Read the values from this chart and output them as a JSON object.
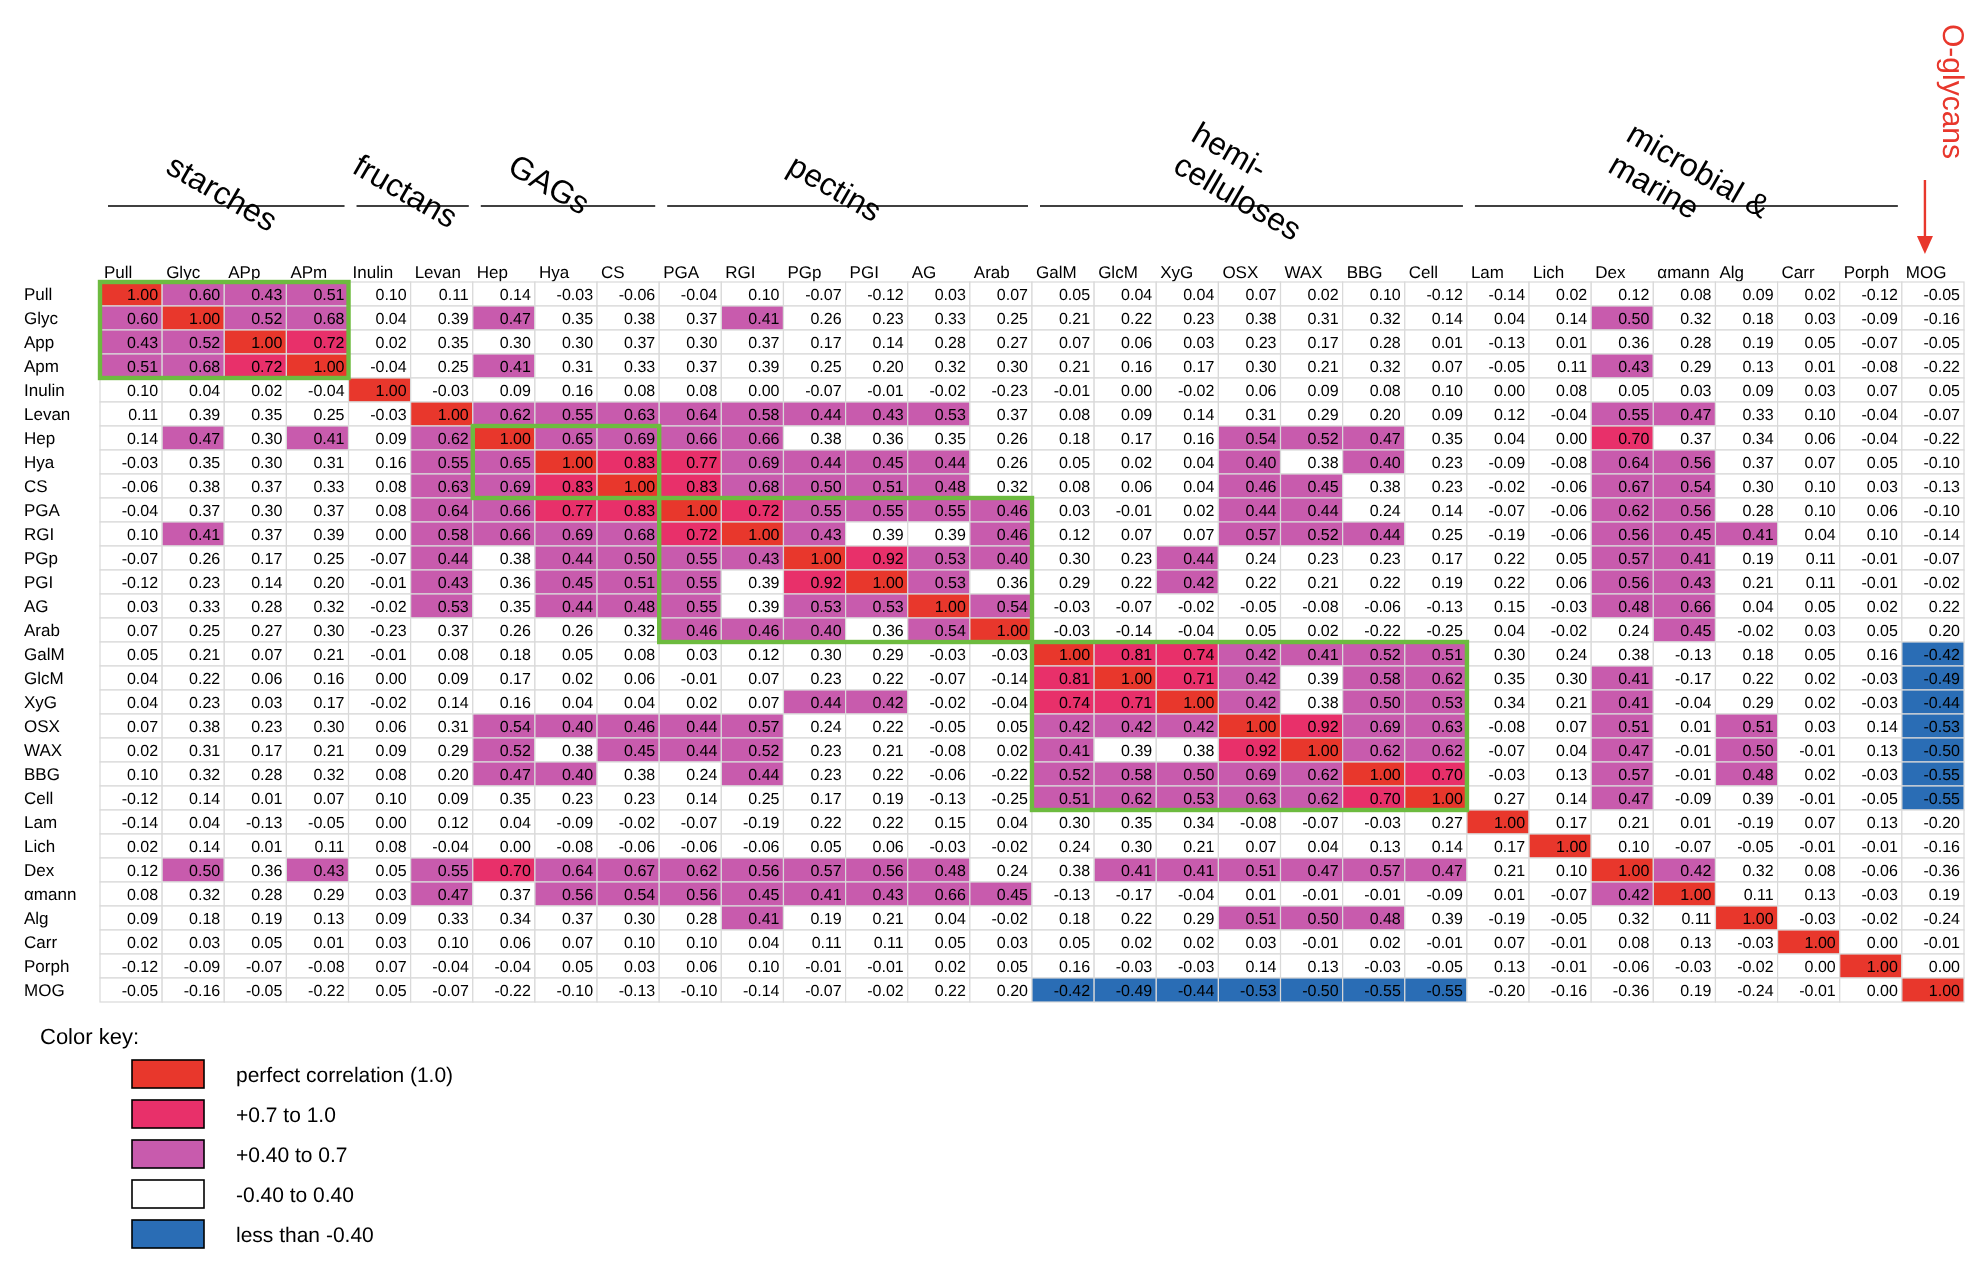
{
  "chart_data": {
    "type": "heatmap",
    "categories": [
      "Pull",
      "Glyc",
      "APp",
      "APm",
      "Inulin",
      "Levan",
      "Hep",
      "Hya",
      "CS",
      "PGA",
      "RGI",
      "PGp",
      "PGI",
      "AG",
      "Arab",
      "GalM",
      "GlcM",
      "XyG",
      "OSX",
      "WAX",
      "BBG",
      "Cell",
      "Lam",
      "Lich",
      "Dex",
      "αmann",
      "Alg",
      "Carr",
      "Porph",
      "MOG"
    ],
    "y_categories": [
      "Pull",
      "Glyc",
      "App",
      "Apm",
      "Inulin",
      "Levan",
      "Hep",
      "Hya",
      "CS",
      "PGA",
      "RGI",
      "PGp",
      "PGI",
      "AG",
      "Arab",
      "GalM",
      "GlcM",
      "XyG",
      "OSX",
      "WAX",
      "BBG",
      "Cell",
      "Lam",
      "Lich",
      "Dex",
      "αmann",
      "Alg",
      "Carr",
      "Porph",
      "MOG"
    ],
    "cells": [
      [
        1.0,
        0.6,
        0.43,
        0.51,
        0.1,
        0.11,
        0.14,
        -0.03,
        -0.06,
        -0.04,
        0.1,
        -0.07,
        -0.12,
        0.03,
        0.07,
        0.05,
        0.04,
        0.04,
        0.07,
        0.02,
        0.1,
        -0.12,
        -0.14,
        0.02,
        0.12,
        0.08,
        0.09,
        0.02,
        -0.12,
        -0.05
      ],
      [
        0.6,
        1.0,
        0.52,
        0.68,
        0.04,
        0.39,
        0.47,
        0.35,
        0.38,
        0.37,
        0.41,
        0.26,
        0.23,
        0.33,
        0.25,
        0.21,
        0.22,
        0.23,
        0.38,
        0.31,
        0.32,
        0.14,
        0.04,
        0.14,
        0.5,
        0.32,
        0.18,
        0.03,
        -0.09,
        -0.16
      ],
      [
        0.43,
        0.52,
        1.0,
        0.72,
        0.02,
        0.35,
        0.3,
        0.3,
        0.37,
        0.3,
        0.37,
        0.17,
        0.14,
        0.28,
        0.27,
        0.07,
        0.06,
        0.03,
        0.23,
        0.17,
        0.28,
        0.01,
        -0.13,
        0.01,
        0.36,
        0.28,
        0.19,
        0.05,
        -0.07,
        -0.05
      ],
      [
        0.51,
        0.68,
        0.72,
        1.0,
        -0.04,
        0.25,
        0.41,
        0.31,
        0.33,
        0.37,
        0.39,
        0.25,
        0.2,
        0.32,
        0.3,
        0.21,
        0.16,
        0.17,
        0.3,
        0.21,
        0.32,
        0.07,
        -0.05,
        0.11,
        0.43,
        0.29,
        0.13,
        0.01,
        -0.08,
        -0.22
      ],
      [
        0.1,
        0.04,
        0.02,
        -0.04,
        1.0,
        -0.03,
        0.09,
        0.16,
        0.08,
        0.08,
        0.0,
        -0.07,
        -0.01,
        -0.02,
        -0.23,
        -0.01,
        0.0,
        -0.02,
        0.06,
        0.09,
        0.08,
        0.1,
        0.0,
        0.08,
        0.05,
        0.03,
        0.09,
        0.03,
        0.07,
        0.05
      ],
      [
        0.11,
        0.39,
        0.35,
        0.25,
        -0.03,
        1.0,
        0.62,
        0.55,
        0.63,
        0.64,
        0.58,
        0.44,
        0.43,
        0.53,
        0.37,
        0.08,
        0.09,
        0.14,
        0.31,
        0.29,
        0.2,
        0.09,
        0.12,
        -0.04,
        0.55,
        0.47,
        0.33,
        0.1,
        -0.04,
        -0.07
      ],
      [
        0.14,
        0.47,
        0.3,
        0.41,
        0.09,
        0.62,
        1.0,
        0.65,
        0.69,
        0.66,
        0.66,
        0.38,
        0.36,
        0.35,
        0.26,
        0.18,
        0.17,
        0.16,
        0.54,
        0.52,
        0.47,
        0.35,
        0.04,
        0.0,
        0.7,
        0.37,
        0.34,
        0.06,
        -0.04,
        -0.22
      ],
      [
        -0.03,
        0.35,
        0.3,
        0.31,
        0.16,
        0.55,
        0.65,
        1.0,
        0.83,
        0.77,
        0.69,
        0.44,
        0.45,
        0.44,
        0.26,
        0.05,
        0.02,
        0.04,
        0.4,
        0.38,
        0.4,
        0.23,
        -0.09,
        -0.08,
        0.64,
        0.56,
        0.37,
        0.07,
        0.05,
        -0.1
      ],
      [
        -0.06,
        0.38,
        0.37,
        0.33,
        0.08,
        0.63,
        0.69,
        0.83,
        1.0,
        0.83,
        0.68,
        0.5,
        0.51,
        0.48,
        0.32,
        0.08,
        0.06,
        0.04,
        0.46,
        0.45,
        0.38,
        0.23,
        -0.02,
        -0.06,
        0.67,
        0.54,
        0.3,
        0.1,
        0.03,
        -0.13
      ],
      [
        -0.04,
        0.37,
        0.3,
        0.37,
        0.08,
        0.64,
        0.66,
        0.77,
        0.83,
        1.0,
        0.72,
        0.55,
        0.55,
        0.55,
        0.46,
        0.03,
        -0.01,
        0.02,
        0.44,
        0.44,
        0.24,
        0.14,
        -0.07,
        -0.06,
        0.62,
        0.56,
        0.28,
        0.1,
        0.06,
        -0.1
      ],
      [
        0.1,
        0.41,
        0.37,
        0.39,
        0.0,
        0.58,
        0.66,
        0.69,
        0.68,
        0.72,
        1.0,
        0.43,
        0.39,
        0.39,
        0.46,
        0.12,
        0.07,
        0.07,
        0.57,
        0.52,
        0.44,
        0.25,
        -0.19,
        -0.06,
        0.56,
        0.45,
        0.41,
        0.04,
        0.1,
        -0.14
      ],
      [
        -0.07,
        0.26,
        0.17,
        0.25,
        -0.07,
        0.44,
        0.38,
        0.44,
        0.5,
        0.55,
        0.43,
        1.0,
        0.92,
        0.53,
        0.4,
        0.3,
        0.23,
        0.44,
        0.24,
        0.23,
        0.23,
        0.17,
        0.22,
        0.05,
        0.57,
        0.41,
        0.19,
        0.11,
        -0.01,
        -0.07
      ],
      [
        -0.12,
        0.23,
        0.14,
        0.2,
        -0.01,
        0.43,
        0.36,
        0.45,
        0.51,
        0.55,
        0.39,
        0.92,
        1.0,
        0.53,
        0.36,
        0.29,
        0.22,
        0.42,
        0.22,
        0.21,
        0.22,
        0.19,
        0.22,
        0.06,
        0.56,
        0.43,
        0.21,
        0.11,
        -0.01,
        -0.02
      ],
      [
        0.03,
        0.33,
        0.28,
        0.32,
        -0.02,
        0.53,
        0.35,
        0.44,
        0.48,
        0.55,
        0.39,
        0.53,
        0.53,
        1.0,
        0.54,
        -0.03,
        -0.07,
        -0.02,
        -0.05,
        -0.08,
        -0.06,
        -0.13,
        0.15,
        -0.03,
        0.48,
        0.66,
        0.04,
        0.05,
        0.02,
        0.22
      ],
      [
        0.07,
        0.25,
        0.27,
        0.3,
        -0.23,
        0.37,
        0.26,
        0.26,
        0.32,
        0.46,
        0.46,
        0.4,
        0.36,
        0.54,
        1.0,
        -0.03,
        -0.14,
        -0.04,
        0.05,
        0.02,
        -0.22,
        -0.25,
        0.04,
        -0.02,
        0.24,
        0.45,
        -0.02,
        0.03,
        0.05,
        0.2
      ],
      [
        0.05,
        0.21,
        0.07,
        0.21,
        -0.01,
        0.08,
        0.18,
        0.05,
        0.08,
        0.03,
        0.12,
        0.3,
        0.29,
        -0.03,
        -0.03,
        1.0,
        0.81,
        0.74,
        0.42,
        0.41,
        0.52,
        0.51,
        0.3,
        0.24,
        0.38,
        -0.13,
        0.18,
        0.05,
        0.16,
        -0.42
      ],
      [
        0.04,
        0.22,
        0.06,
        0.16,
        0.0,
        0.09,
        0.17,
        0.02,
        0.06,
        -0.01,
        0.07,
        0.23,
        0.22,
        -0.07,
        -0.14,
        0.81,
        1.0,
        0.71,
        0.42,
        0.39,
        0.58,
        0.62,
        0.35,
        0.3,
        0.41,
        -0.17,
        0.22,
        0.02,
        -0.03,
        -0.49
      ],
      [
        0.04,
        0.23,
        0.03,
        0.17,
        -0.02,
        0.14,
        0.16,
        0.04,
        0.04,
        0.02,
        0.07,
        0.44,
        0.42,
        -0.02,
        -0.04,
        0.74,
        0.71,
        1.0,
        0.42,
        0.38,
        0.5,
        0.53,
        0.34,
        0.21,
        0.41,
        -0.04,
        0.29,
        0.02,
        -0.03,
        -0.44
      ],
      [
        0.07,
        0.38,
        0.23,
        0.3,
        0.06,
        0.31,
        0.54,
        0.4,
        0.46,
        0.44,
        0.57,
        0.24,
        0.22,
        -0.05,
        0.05,
        0.42,
        0.42,
        0.42,
        1.0,
        0.92,
        0.69,
        0.63,
        -0.08,
        0.07,
        0.51,
        0.01,
        0.51,
        0.03,
        0.14,
        -0.53
      ],
      [
        0.02,
        0.31,
        0.17,
        0.21,
        0.09,
        0.29,
        0.52,
        0.38,
        0.45,
        0.44,
        0.52,
        0.23,
        0.21,
        -0.08,
        0.02,
        0.41,
        0.39,
        0.38,
        0.92,
        1.0,
        0.62,
        0.62,
        -0.07,
        0.04,
        0.47,
        -0.01,
        0.5,
        -0.01,
        0.13,
        -0.5
      ],
      [
        0.1,
        0.32,
        0.28,
        0.32,
        0.08,
        0.2,
        0.47,
        0.4,
        0.38,
        0.24,
        0.44,
        0.23,
        0.22,
        -0.06,
        -0.22,
        0.52,
        0.58,
        0.5,
        0.69,
        0.62,
        1.0,
        0.7,
        -0.03,
        0.13,
        0.57,
        -0.01,
        0.48,
        0.02,
        -0.03,
        -0.55
      ],
      [
        -0.12,
        0.14,
        0.01,
        0.07,
        0.1,
        0.09,
        0.35,
        0.23,
        0.23,
        0.14,
        0.25,
        0.17,
        0.19,
        -0.13,
        -0.25,
        0.51,
        0.62,
        0.53,
        0.63,
        0.62,
        0.7,
        1.0,
        0.27,
        0.14,
        0.47,
        -0.09,
        0.39,
        -0.01,
        -0.05,
        -0.55
      ],
      [
        -0.14,
        0.04,
        -0.13,
        -0.05,
        0.0,
        0.12,
        0.04,
        -0.09,
        -0.02,
        -0.07,
        -0.19,
        0.22,
        0.22,
        0.15,
        0.04,
        0.3,
        0.35,
        0.34,
        -0.08,
        -0.07,
        -0.03,
        0.27,
        1.0,
        0.17,
        0.21,
        0.01,
        -0.19,
        0.07,
        0.13,
        -0.2
      ],
      [
        0.02,
        0.14,
        0.01,
        0.11,
        0.08,
        -0.04,
        0.0,
        -0.08,
        -0.06,
        -0.06,
        -0.06,
        0.05,
        0.06,
        -0.03,
        -0.02,
        0.24,
        0.3,
        0.21,
        0.07,
        0.04,
        0.13,
        0.14,
        0.17,
        1.0,
        0.1,
        -0.07,
        -0.05,
        -0.01,
        -0.01,
        -0.16
      ],
      [
        0.12,
        0.5,
        0.36,
        0.43,
        0.05,
        0.55,
        0.7,
        0.64,
        0.67,
        0.62,
        0.56,
        0.57,
        0.56,
        0.48,
        0.24,
        0.38,
        0.41,
        0.41,
        0.51,
        0.47,
        0.57,
        0.47,
        0.21,
        0.1,
        1.0,
        0.42,
        0.32,
        0.08,
        -0.06,
        -0.36
      ],
      [
        0.08,
        0.32,
        0.28,
        0.29,
        0.03,
        0.47,
        0.37,
        0.56,
        0.54,
        0.56,
        0.45,
        0.41,
        0.43,
        0.66,
        0.45,
        -0.13,
        -0.17,
        -0.04,
        0.01,
        -0.01,
        -0.01,
        -0.09,
        0.01,
        -0.07,
        0.42,
        1.0,
        0.11,
        0.13,
        -0.03,
        0.19
      ],
      [
        0.09,
        0.18,
        0.19,
        0.13,
        0.09,
        0.33,
        0.34,
        0.37,
        0.3,
        0.28,
        0.41,
        0.19,
        0.21,
        0.04,
        -0.02,
        0.18,
        0.22,
        0.29,
        0.51,
        0.5,
        0.48,
        0.39,
        -0.19,
        -0.05,
        0.32,
        0.11,
        1.0,
        -0.03,
        -0.02,
        -0.24
      ],
      [
        0.02,
        0.03,
        0.05,
        0.01,
        0.03,
        0.1,
        0.06,
        0.07,
        0.1,
        0.1,
        0.04,
        0.11,
        0.11,
        0.05,
        0.03,
        0.05,
        0.02,
        0.02,
        0.03,
        -0.01,
        0.02,
        -0.01,
        0.07,
        -0.01,
        0.08,
        0.13,
        -0.03,
        1.0,
        0.0,
        -0.01
      ],
      [
        -0.12,
        -0.09,
        -0.07,
        -0.08,
        0.07,
        -0.04,
        -0.04,
        0.05,
        0.03,
        0.06,
        0.1,
        -0.01,
        -0.01,
        0.02,
        0.05,
        0.16,
        -0.03,
        -0.03,
        0.14,
        0.13,
        -0.03,
        -0.05,
        0.13,
        -0.01,
        -0.06,
        -0.03,
        -0.02,
        0.0,
        1.0,
        0.0
      ],
      [
        -0.05,
        -0.16,
        -0.05,
        -0.22,
        0.05,
        -0.07,
        -0.22,
        -0.1,
        -0.13,
        -0.1,
        -0.14,
        -0.07,
        -0.02,
        0.22,
        0.2,
        -0.42,
        -0.49,
        -0.44,
        -0.53,
        -0.5,
        -0.55,
        -0.55,
        -0.2,
        -0.16,
        -0.36,
        0.19,
        -0.24,
        -0.01,
        0.0,
        1.0
      ]
    ],
    "data_labels": true,
    "colors": [
      "#e8372c",
      "#e8306a",
      "#c85bad",
      "#ffffff",
      "#2a6db5"
    ],
    "annotations": [
      "starches",
      "fructans",
      "GAGs",
      "pectins",
      "hemi-celluloses",
      "microbial & marine",
      "O-glycans",
      "Color key:",
      "perfect correlation (1.0)",
      "+0.7 to 1.0",
      "+0.40 to 0.7",
      "-0.40 to 0.40",
      "less than -0.40"
    ],
    "cell_labels": [
      [
        "1.00",
        "0.60",
        "0.43",
        "0.51",
        "0.10",
        "0.11",
        "0.14",
        "-0.03",
        "-0.06",
        "-0.04",
        "0.10",
        "-0.07",
        "-0.12",
        "0.03",
        "0.07",
        "0.05",
        "0.04",
        "0.04",
        "0.07",
        "0.02",
        "0.10",
        "-0.12",
        "-0.14",
        "0.02",
        "0.12",
        "0.08",
        "0.09",
        "0.02",
        "-0.12",
        "-0.05"
      ],
      [
        "0.60",
        "1.00",
        "0.52",
        "0.68",
        "0.04",
        "0.39",
        "0.47",
        "0.35",
        "0.38",
        "0.37",
        "0.41",
        "0.26",
        "0.23",
        "0.33",
        "0.25",
        "0.21",
        "0.22",
        "0.23",
        "0.38",
        "0.31",
        "0.32",
        "0.14",
        "0.04",
        "0.14",
        "0.50",
        "0.32",
        "0.18",
        "0.03",
        "-0.09",
        "-0.16"
      ],
      [
        "0.43",
        "0.52",
        "1.00",
        "0.72",
        "0.02",
        "0.35",
        "0.30",
        "0.30",
        "0.37",
        "0.30",
        "0.37",
        "0.17",
        "0.14",
        "0.28",
        "0.27",
        "0.07",
        "0.06",
        "0.03",
        "0.23",
        "0.17",
        "0.28",
        "0.01",
        "-0.13",
        "0.01",
        "0.36",
        "0.28",
        "0.19",
        "0.05",
        "-0.07",
        "-0.05"
      ],
      [
        "0.51",
        "0.68",
        "0.72",
        "1.00",
        "-0.04",
        "0.25",
        "0.41",
        "0.31",
        "0.33",
        "0.37",
        "0.39",
        "0.25",
        "0.20",
        "0.32",
        "0.30",
        "0.21",
        "0.16",
        "0.17",
        "0.30",
        "0.21",
        "0.32",
        "0.07",
        "-0.05",
        "0.11",
        "0.43",
        "0.29",
        "0.13",
        "0.01",
        "-0.08",
        "-0.22"
      ],
      [
        "0.10",
        "0.04",
        "0.02",
        "-0.04",
        "1.00",
        "-0.03",
        "0.09",
        "0.16",
        "0.08",
        "0.08",
        "0.00",
        "-0.07",
        "-0.01",
        "-0.02",
        "-0.23",
        "-0.01",
        "0.00",
        "-0.02",
        "0.06",
        "0.09",
        "0.08",
        "0.10",
        "0.00",
        "0.08",
        "0.05",
        "0.03",
        "0.09",
        "0.03",
        "0.07",
        "0.05"
      ],
      [
        "0.11",
        "0.39",
        "0.35",
        "0.25",
        "-0.03",
        "1.00",
        "0.62",
        "0.55",
        "0.63",
        "0.64",
        "0.58",
        "0.44",
        "0.43",
        "0.53",
        "0.37",
        "0.08",
        "0.09",
        "0.14",
        "0.31",
        "0.29",
        "0.20",
        "0.09",
        "0.12",
        "-0.04",
        "0.55",
        "0.47",
        "0.33",
        "0.10",
        "-0.04",
        "-0.07"
      ],
      [
        "0.14",
        "0.47",
        "0.30",
        "0.41",
        "0.09",
        "0.62",
        "1.00",
        "0.65",
        "0.69",
        "0.66",
        "0.66",
        "0.38",
        "0.36",
        "0.35",
        "0.26",
        "0.18",
        "0.17",
        "0.16",
        "0.54",
        "0.52",
        "0.47",
        "0.35",
        "0.04",
        "0.00",
        "0.70",
        "0.37",
        "0.34",
        "0.06",
        "-0.04",
        "-0.22"
      ],
      [
        "-0.03",
        "0.35",
        "0.30",
        "0.31",
        "0.16",
        "0.55",
        "0.65",
        "1.00",
        "0.83",
        "0.77",
        "0.69",
        "0.44",
        "0.45",
        "0.44",
        "0.26",
        "0.05",
        "0.02",
        "0.04",
        "0.40",
        "0.38",
        "0.40",
        "0.23",
        "-0.09",
        "-0.08",
        "0.64",
        "0.56",
        "0.37",
        "0.07",
        "0.05",
        "-0.10"
      ],
      [
        "-0.06",
        "0.38",
        "0.37",
        "0.33",
        "0.08",
        "0.63",
        "0.69",
        "0.83",
        "1.00",
        "0.83",
        "0.68",
        "0.50",
        "0.51",
        "0.48",
        "0.32",
        "0.08",
        "0.06",
        "0.04",
        "0.46",
        "0.45",
        "0.38",
        "0.23",
        "-0.02",
        "-0.06",
        "0.67",
        "0.54",
        "0.30",
        "0.10",
        "0.03",
        "-0.13"
      ],
      [
        "-0.04",
        "0.37",
        "0.30",
        "0.37",
        "0.08",
        "0.64",
        "0.66",
        "0.77",
        "0.83",
        "1.00",
        "0.72",
        "0.55",
        "0.55",
        "0.55",
        "0.46",
        "0.03",
        "-0.01",
        "0.02",
        "0.44",
        "0.44",
        "0.24",
        "0.14",
        "-0.07",
        "-0.06",
        "0.62",
        "0.56",
        "0.28",
        "0.10",
        "0.06",
        "-0.10"
      ],
      [
        "0.10",
        "0.41",
        "0.37",
        "0.39",
        "0.00",
        "0.58",
        "0.66",
        "0.69",
        "0.68",
        "0.72",
        "1.00",
        "0.43",
        "0.39",
        "0.39",
        "0.46",
        "0.12",
        "0.07",
        "0.07",
        "0.57",
        "0.52",
        "0.44",
        "0.25",
        "-0.19",
        "-0.06",
        "0.56",
        "0.45",
        "0.41",
        "0.04",
        "0.10",
        "-0.14"
      ],
      [
        "-0.07",
        "0.26",
        "0.17",
        "0.25",
        "-0.07",
        "0.44",
        "0.38",
        "0.44",
        "0.50",
        "0.55",
        "0.43",
        "1.00",
        "0.92",
        "0.53",
        "0.40",
        "0.30",
        "0.23",
        "0.44",
        "0.24",
        "0.23",
        "0.23",
        "0.17",
        "0.22",
        "0.05",
        "0.57",
        "0.41",
        "0.19",
        "0.11",
        "-0.01",
        "-0.07"
      ],
      [
        "-0.12",
        "0.23",
        "0.14",
        "0.20",
        "-0.01",
        "0.43",
        "0.36",
        "0.45",
        "0.51",
        "0.55",
        "0.39",
        "0.92",
        "1.00",
        "0.53",
        "0.36",
        "0.29",
        "0.22",
        "0.42",
        "0.22",
        "0.21",
        "0.22",
        "0.19",
        "0.22",
        "0.06",
        "0.56",
        "0.43",
        "0.21",
        "0.11",
        "-0.01",
        "-0.02"
      ],
      [
        "0.03",
        "0.33",
        "0.28",
        "0.32",
        "-0.02",
        "0.53",
        "0.35",
        "0.44",
        "0.48",
        "0.55",
        "0.39",
        "0.53",
        "0.53",
        "1.00",
        "0.54",
        "-0.03",
        "-0.07",
        "-0.02",
        "-0.05",
        "-0.08",
        "-0.06",
        "-0.13",
        "0.15",
        "-0.03",
        "0.48",
        "0.66",
        "0.04",
        "0.05",
        "0.02",
        "0.22"
      ],
      [
        "0.07",
        "0.25",
        "0.27",
        "0.30",
        "-0.23",
        "0.37",
        "0.26",
        "0.26",
        "0.32",
        "0.46",
        "0.46",
        "0.40",
        "0.36",
        "0.54",
        "1.00",
        "-0.03",
        "-0.14",
        "-0.04",
        "0.05",
        "0.02",
        "-0.22",
        "-0.25",
        "0.04",
        "-0.02",
        "0.24",
        "0.45",
        "-0.02",
        "0.03",
        "0.05",
        "0.20"
      ],
      [
        "0.05",
        "0.21",
        "0.07",
        "0.21",
        "-0.01",
        "0.08",
        "0.18",
        "0.05",
        "0.08",
        "0.03",
        "0.12",
        "0.30",
        "0.29",
        "-0.03",
        "-0.03",
        "1.00",
        "0.81",
        "0.74",
        "0.42",
        "0.41",
        "0.52",
        "0.51",
        "0.30",
        "0.24",
        "0.38",
        "-0.13",
        "0.18",
        "0.05",
        "0.16",
        "-0.42"
      ],
      [
        "0.04",
        "0.22",
        "0.06",
        "0.16",
        "0.00",
        "0.09",
        "0.17",
        "0.02",
        "0.06",
        "-0.01",
        "0.07",
        "0.23",
        "0.22",
        "-0.07",
        "-0.14",
        "0.81",
        "1.00",
        "0.71",
        "0.42",
        "0.39",
        "0.58",
        "0.62",
        "0.35",
        "0.30",
        "0.41",
        "-0.17",
        "0.22",
        "0.02",
        "-0.03",
        "-0.49"
      ],
      [
        "0.04",
        "0.23",
        "0.03",
        "0.17",
        "-0.02",
        "0.14",
        "0.16",
        "0.04",
        "0.04",
        "0.02",
        "0.07",
        "0.44",
        "0.42",
        "-0.02",
        "-0.04",
        "0.74",
        "0.71",
        "1.00",
        "0.42",
        "0.38",
        "0.50",
        "0.53",
        "0.34",
        "0.21",
        "0.41",
        "-0.04",
        "0.29",
        "0.02",
        "-0.03",
        "-0.44"
      ],
      [
        "0.07",
        "0.38",
        "0.23",
        "0.30",
        "0.06",
        "0.31",
        "0.54",
        "0.40",
        "0.46",
        "0.44",
        "0.57",
        "0.24",
        "0.22",
        "-0.05",
        "0.05",
        "0.42",
        "0.42",
        "0.42",
        "1.00",
        "0.92",
        "0.69",
        "0.63",
        "-0.08",
        "0.07",
        "0.51",
        "0.01",
        "0.51",
        "0.03",
        "0.14",
        "-0.53"
      ],
      [
        "0.02",
        "0.31",
        "0.17",
        "0.21",
        "0.09",
        "0.29",
        "0.52",
        "0.38",
        "0.45",
        "0.44",
        "0.52",
        "0.23",
        "0.21",
        "-0.08",
        "0.02",
        "0.41",
        "0.39",
        "0.38",
        "0.92",
        "1.00",
        "0.62",
        "0.62",
        "-0.07",
        "0.04",
        "0.47",
        "-0.01",
        "0.50",
        "-0.01",
        "0.13",
        "-0.50"
      ],
      [
        "0.10",
        "0.32",
        "0.28",
        "0.32",
        "0.08",
        "0.20",
        "0.47",
        "0.40",
        "0.38",
        "0.24",
        "0.44",
        "0.23",
        "0.22",
        "-0.06",
        "-0.22",
        "0.52",
        "0.58",
        "0.50",
        "0.69",
        "0.62",
        "1.00",
        "0.70",
        "-0.03",
        "0.13",
        "0.57",
        "-0.01",
        "0.48",
        "0.02",
        "-0.03",
        "-0.55"
      ],
      [
        "-0.12",
        "0.14",
        "0.01",
        "0.07",
        "0.10",
        "0.09",
        "0.35",
        "0.23",
        "0.23",
        "0.14",
        "0.25",
        "0.17",
        "0.19",
        "-0.13",
        "-0.25",
        "0.51",
        "0.62",
        "0.53",
        "0.63",
        "0.62",
        "0.70",
        "1.00",
        "0.27",
        "0.14",
        "0.47",
        "-0.09",
        "0.39",
        "-0.01",
        "-0.05",
        "-0.55"
      ],
      [
        "-0.14",
        "0.04",
        "-0.13",
        "-0.05",
        "0.00",
        "0.12",
        "0.04",
        "-0.09",
        "-0.02",
        "-0.07",
        "-0.19",
        "0.22",
        "0.22",
        "0.15",
        "0.04",
        "0.30",
        "0.35",
        "0.34",
        "-0.08",
        "-0.07",
        "-0.03",
        "0.27",
        "1.00",
        "0.17",
        "0.21",
        "0.01",
        "-0.19",
        "0.07",
        "0.13",
        "-0.20"
      ],
      [
        "0.02",
        "0.14",
        "0.01",
        "0.11",
        "0.08",
        "-0.04",
        "0.00",
        "-0.08",
        "-0.06",
        "-0.06",
        "-0.06",
        "0.05",
        "0.06",
        "-0.03",
        "-0.02",
        "0.24",
        "0.30",
        "0.21",
        "0.07",
        "0.04",
        "0.13",
        "0.14",
        "0.17",
        "1.00",
        "0.10",
        "-0.07",
        "-0.05",
        "-0.01",
        "-0.01",
        "-0.16"
      ],
      [
        "0.12",
        "0.50",
        "0.36",
        "0.43",
        "0.05",
        "0.55",
        "0.70",
        "0.64",
        "0.67",
        "0.62",
        "0.56",
        "0.57",
        "0.56",
        "0.48",
        "0.24",
        "0.38",
        "0.41",
        "0.41",
        "0.51",
        "0.47",
        "0.57",
        "0.47",
        "0.21",
        "0.10",
        "1.00",
        "0.42",
        "0.32",
        "0.08",
        "-0.06",
        "-0.36"
      ],
      [
        "0.08",
        "0.32",
        "0.28",
        "0.29",
        "0.03",
        "0.47",
        "0.37",
        "0.56",
        "0.54",
        "0.56",
        "0.45",
        "0.41",
        "0.43",
        "0.66",
        "0.45",
        "-0.13",
        "-0.17",
        "-0.04",
        "0.01",
        "-0.01",
        "-0.01",
        "-0.09",
        "0.01",
        "-0.07",
        "0.42",
        "1.00",
        "0.11",
        "0.13",
        "-0.03",
        "0.19"
      ],
      [
        "0.09",
        "0.18",
        "0.19",
        "0.13",
        "0.09",
        "0.33",
        "0.34",
        "0.37",
        "0.30",
        "0.28",
        "0.41",
        "0.19",
        "0.21",
        "0.04",
        "-0.02",
        "0.18",
        "0.22",
        "0.29",
        "0.51",
        "0.50",
        "0.48",
        "0.39",
        "-0.19",
        "-0.05",
        "0.32",
        "0.11",
        "1.00",
        "-0.03",
        "-0.02",
        "-0.24"
      ],
      [
        "0.02",
        "0.03",
        "0.05",
        "0.01",
        "0.03",
        "0.10",
        "0.06",
        "0.07",
        "0.10",
        "0.10",
        "0.04",
        "0.11",
        "0.11",
        "0.05",
        "0.03",
        "0.05",
        "0.02",
        "0.02",
        "0.03",
        "-0.01",
        "0.02",
        "-0.01",
        "0.07",
        "-0.01",
        "0.08",
        "0.13",
        "-0.03",
        "1.00",
        "0.00",
        "-0.01"
      ],
      [
        "-0.12",
        "-0.09",
        "-0.07",
        "-0.08",
        "0.07",
        "-0.04",
        "-0.04",
        "0.05",
        "0.03",
        "0.06",
        "0.10",
        "-0.01",
        "-0.01",
        "0.02",
        "0.05",
        "0.16",
        "-0.03",
        "-0.03",
        "0.14",
        "0.13",
        "-0.03",
        "-0.05",
        "0.13",
        "-0.01",
        "-0.06",
        "-0.03",
        "-0.02",
        "0.00",
        "1.00",
        "0.00"
      ],
      [
        "-0.05",
        "-0.16",
        "-0.05",
        "-0.22",
        "0.05",
        "-0.07",
        "-0.22",
        "-0.10",
        "-0.13",
        "-0.10",
        "-0.14",
        "-0.07",
        "-0.02",
        "0.22",
        "0.20",
        "-0.42",
        "-0.49",
        "-0.44",
        "-0.53",
        "-0.50",
        "-0.55",
        "-0.55",
        "-0.20",
        "-0.16",
        "-0.36",
        "0.19",
        "-0.24",
        "-0.01",
        "0.00",
        "1.00"
      ]
    ]
  }
}
